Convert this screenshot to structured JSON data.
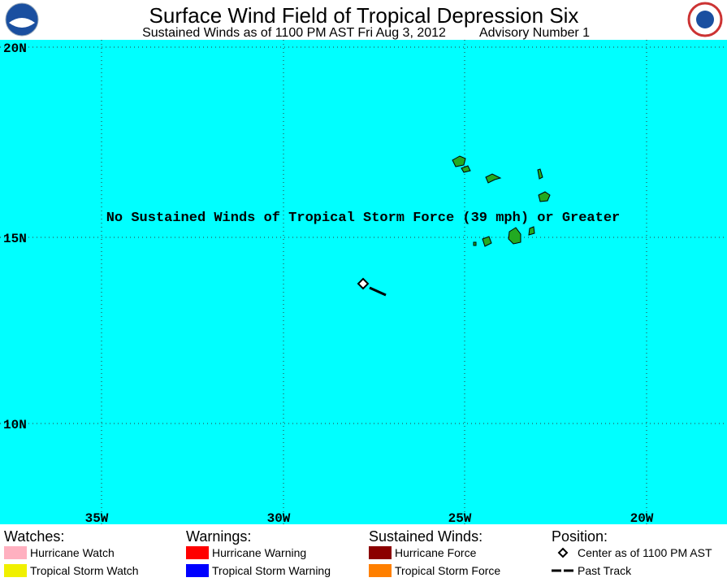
{
  "header": {
    "title": "Surface Wind Field of Tropical Depression Six",
    "subtitle": "Sustained Winds as of 1100 PM AST Fri Aug 3, 2012",
    "advisory": "Advisory Number 1"
  },
  "map": {
    "message": "No Sustained Winds of Tropical Storm Force (39 mph) or Greater",
    "latitude_labels": [
      "20N",
      "15N",
      "10N"
    ],
    "longitude_labels": [
      "35W",
      "30W",
      "25W",
      "20W"
    ]
  },
  "legend": {
    "watches": {
      "title": "Watches:",
      "items": [
        {
          "label": "Hurricane Watch",
          "color": "#ffb0c0"
        },
        {
          "label": "Tropical Storm Watch",
          "color": "#f0f000"
        }
      ]
    },
    "warnings": {
      "title": "Warnings:",
      "items": [
        {
          "label": "Hurricane Warning",
          "color": "#ff0000"
        },
        {
          "label": "Tropical Storm Warning",
          "color": "#0000ff"
        }
      ]
    },
    "winds": {
      "title": "Sustained Winds:",
      "items": [
        {
          "label": "Hurricane Force",
          "color": "#8b0000"
        },
        {
          "label": "Tropical Storm Force",
          "color": "#ff8000"
        }
      ]
    },
    "position": {
      "title": "Position:",
      "items": [
        {
          "label": "Center as of 1100 PM AST"
        },
        {
          "label": "Past Track"
        }
      ]
    }
  }
}
